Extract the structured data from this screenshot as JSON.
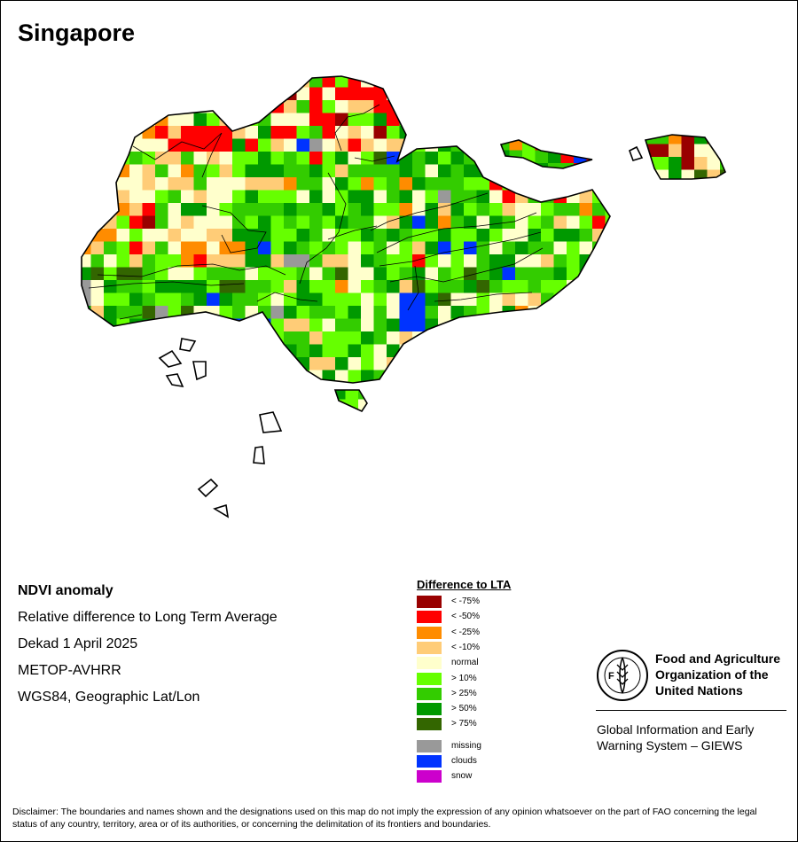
{
  "title": "Singapore",
  "info": {
    "line1": "NDVI anomaly",
    "line2": "Relative difference to Long Term Average",
    "line3": "Dekad 1 April 2025",
    "line4": "METOP-AVHRR",
    "line5": "WGS84, Geographic Lat/Lon"
  },
  "legend": {
    "title": "Difference to LTA",
    "items": [
      {
        "label": "< -75%",
        "color": "#990000"
      },
      {
        "label": "< -50%",
        "color": "#ff0000"
      },
      {
        "label": "< -25%",
        "color": "#ff8c00"
      },
      {
        "label": "< -10%",
        "color": "#ffcc77"
      },
      {
        "label": "normal",
        "color": "#ffffcc"
      },
      {
        "label": "> 10%",
        "color": "#66ff00"
      },
      {
        "label": "> 25%",
        "color": "#33cc00"
      },
      {
        "label": "> 50%",
        "color": "#009900"
      },
      {
        "label": "> 75%",
        "color": "#336600"
      }
    ],
    "extra": [
      {
        "label": "missing",
        "color": "#999999"
      },
      {
        "label": "clouds",
        "color": "#0033ff"
      },
      {
        "label": "snow",
        "color": "#cc00cc"
      }
    ]
  },
  "organization": {
    "logo_text": "FAO",
    "name_line1": "Food and Agriculture",
    "name_line2": "Organization of the",
    "name_line3": "United Nations",
    "program_line1": "Global Information and Early",
    "program_line2": "Warning System – GIEWS"
  },
  "disclaimer": "Disclaimer: The boundaries and names shown and the designations used on this map do not imply the expression of any opinion whatsoever on the part of FAO concerning the legal status of any country, territory, area or of its authorities, or concerning the delimitation of its frontiers and boundaries."
}
